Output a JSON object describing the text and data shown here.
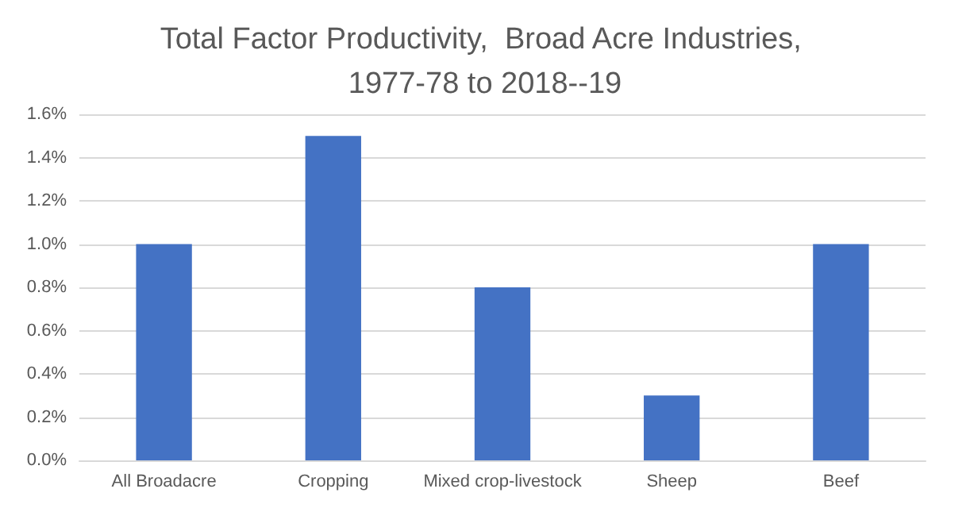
{
  "chart_data": {
    "type": "bar",
    "title": "Total Factor Productivity,  Broad Acre Industries, 1977-78 to 2018--19",
    "categories": [
      "All Broadacre",
      "Cropping",
      "Mixed crop-livestock",
      "Sheep",
      "Beef"
    ],
    "values": [
      1.0,
      1.5,
      0.8,
      0.3,
      1.0
    ],
    "color": "#4472c4",
    "ylim": [
      0,
      1.6
    ],
    "yticks": [
      {
        "value": 0,
        "label": "0.0%"
      },
      {
        "value": 0.2,
        "label": "0.2%"
      },
      {
        "value": 0.4,
        "label": "0.4%"
      },
      {
        "value": 0.6,
        "label": "0.6%"
      },
      {
        "value": 0.8,
        "label": "0.8%"
      },
      {
        "value": 1.0,
        "label": "1.0%"
      },
      {
        "value": 1.2,
        "label": "1.2%"
      },
      {
        "value": 1.4,
        "label": "1.4%"
      },
      {
        "value": 1.6,
        "label": "1.6%"
      }
    ],
    "grid": "y"
  }
}
